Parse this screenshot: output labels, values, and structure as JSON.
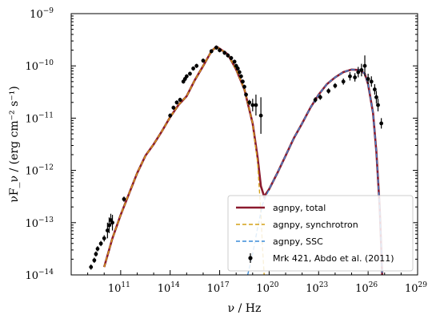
{
  "chart_data": {
    "type": "line",
    "title": "",
    "xlabel": "ν / Hz",
    "ylabel": "νF_ν / (erg cm⁻² s⁻¹)",
    "xscale": "log",
    "yscale": "log",
    "xlim": [
      100000000.0,
      1e+29
    ],
    "ylim": [
      1e-14,
      1e-09
    ],
    "grid": false,
    "legend_position": "bottom-right",
    "x_ticks": [
      {
        "value": 100000000000.0,
        "label": "10",
        "exp": "11"
      },
      {
        "value": 100000000000000.0,
        "label": "10",
        "exp": "14"
      },
      {
        "value": 1e+17,
        "label": "10",
        "exp": "17"
      },
      {
        "value": 1e+20,
        "label": "10",
        "exp": "20"
      },
      {
        "value": 1e+23,
        "label": "10",
        "exp": "23"
      },
      {
        "value": 1e+26,
        "label": "10",
        "exp": "26"
      },
      {
        "value": 1e+29,
        "label": "10",
        "exp": "29"
      }
    ],
    "y_ticks": [
      {
        "value": 1e-14,
        "label": "10",
        "exp": "−14"
      },
      {
        "value": 1e-13,
        "label": "10",
        "exp": "−13"
      },
      {
        "value": 1e-12,
        "label": "10",
        "exp": "−12"
      },
      {
        "value": 1e-11,
        "label": "10",
        "exp": "−11"
      },
      {
        "value": 1e-10,
        "label": "10",
        "exp": "−10"
      },
      {
        "value": 1e-09,
        "label": "10",
        "exp": "−9"
      }
    ],
    "series": [
      {
        "name": "agnpy, total",
        "color": "#8b1a2e",
        "style": "solid",
        "logx": [
          10.0,
          10.5,
          11.0,
          11.5,
          12.0,
          12.5,
          13.0,
          13.5,
          14.0,
          14.5,
          15.0,
          15.5,
          16.0,
          16.5,
          16.8,
          17.0,
          17.5,
          18.0,
          18.5,
          19.0,
          19.3,
          19.5,
          19.7,
          20.0,
          20.5,
          21.0,
          21.5,
          22.0,
          22.5,
          23.0,
          23.5,
          24.0,
          24.5,
          25.0,
          25.5,
          25.8,
          26.0,
          26.3,
          26.5,
          26.7,
          26.8,
          26.85
        ],
        "logy": [
          -13.85,
          -13.3,
          -12.85,
          -12.45,
          -12.05,
          -11.72,
          -11.5,
          -11.25,
          -10.98,
          -10.75,
          -10.58,
          -10.27,
          -10.0,
          -9.72,
          -9.63,
          -9.67,
          -9.78,
          -10.07,
          -10.45,
          -11.1,
          -11.75,
          -12.3,
          -12.5,
          -12.36,
          -12.05,
          -11.72,
          -11.38,
          -11.1,
          -10.8,
          -10.55,
          -10.35,
          -10.22,
          -10.12,
          -10.07,
          -10.08,
          -10.15,
          -10.35,
          -10.9,
          -11.65,
          -12.7,
          -13.5,
          -14.0
        ]
      },
      {
        "name": "agnpy, synchrotron",
        "color": "#d4a017",
        "style": "dashed",
        "logx": [
          10.0,
          10.5,
          11.0,
          11.5,
          12.0,
          12.5,
          13.0,
          13.5,
          14.0,
          14.5,
          15.0,
          15.5,
          16.0,
          16.5,
          16.8,
          17.0,
          17.5,
          18.0,
          18.5,
          19.0,
          19.3,
          19.5,
          19.6,
          19.7
        ],
        "logy": [
          -13.85,
          -13.3,
          -12.85,
          -12.45,
          -12.05,
          -11.72,
          -11.5,
          -11.25,
          -10.98,
          -10.75,
          -10.58,
          -10.27,
          -10.0,
          -9.72,
          -9.63,
          -9.67,
          -9.78,
          -10.07,
          -10.45,
          -11.1,
          -11.85,
          -12.8,
          -13.5,
          -14.0
        ]
      },
      {
        "name": "agnpy, SSC",
        "color": "#3a8bd8",
        "style": "dashed",
        "logx": [
          18.7,
          19.0,
          19.3,
          19.6,
          20.0,
          20.5,
          21.0,
          21.5,
          22.0,
          22.5,
          23.0,
          23.5,
          24.0,
          24.5,
          25.0,
          25.5,
          25.8,
          26.0,
          26.3,
          26.5,
          26.7,
          26.8,
          26.85
        ],
        "logy": [
          -14.0,
          -13.6,
          -13.1,
          -12.65,
          -12.36,
          -12.05,
          -11.72,
          -11.38,
          -11.1,
          -10.8,
          -10.55,
          -10.35,
          -10.22,
          -10.12,
          -10.07,
          -10.08,
          -10.15,
          -10.35,
          -10.9,
          -11.65,
          -12.7,
          -13.5,
          -14.0
        ]
      },
      {
        "name": "Mrk 421, Abdo et al. (2011)",
        "color": "#000000",
        "style": "points",
        "points": [
          [
            9.2,
            -13.85,
            0.05
          ],
          [
            9.4,
            -13.72,
            0.05
          ],
          [
            9.5,
            -13.6,
            0.05
          ],
          [
            9.6,
            -13.5,
            0.05
          ],
          [
            9.8,
            -13.4,
            0.05
          ],
          [
            10.0,
            -13.3,
            0.06
          ],
          [
            10.2,
            -13.15,
            0.15
          ],
          [
            10.3,
            -13.05,
            0.15
          ],
          [
            10.4,
            -12.95,
            0.12
          ],
          [
            10.5,
            -13.0,
            0.15
          ],
          [
            11.2,
            -12.55,
            0.05
          ],
          [
            14.0,
            -10.95,
            0.04
          ],
          [
            14.2,
            -10.8,
            0.04
          ],
          [
            14.4,
            -10.7,
            0.04
          ],
          [
            14.6,
            -10.65,
            0.04
          ],
          [
            14.8,
            -10.3,
            0.04
          ],
          [
            14.9,
            -10.25,
            0.04
          ],
          [
            15.0,
            -10.2,
            0.04
          ],
          [
            15.2,
            -10.15,
            0.04
          ],
          [
            15.4,
            -10.05,
            0.04
          ],
          [
            15.6,
            -10.0,
            0.04
          ],
          [
            16.0,
            -9.9,
            0.04
          ],
          [
            16.5,
            -9.72,
            0.04
          ],
          [
            16.8,
            -9.65,
            0.04
          ],
          [
            17.0,
            -9.7,
            0.04
          ],
          [
            17.3,
            -9.75,
            0.04
          ],
          [
            17.5,
            -9.8,
            0.04
          ],
          [
            17.7,
            -9.85,
            0.04
          ],
          [
            17.9,
            -9.92,
            0.04
          ],
          [
            18.0,
            -10.0,
            0.04
          ],
          [
            18.1,
            -10.05,
            0.04
          ],
          [
            18.2,
            -10.12,
            0.04
          ],
          [
            18.3,
            -10.2,
            0.04
          ],
          [
            18.4,
            -10.3,
            0.04
          ],
          [
            18.5,
            -10.4,
            0.04
          ],
          [
            18.6,
            -10.55,
            0.04
          ],
          [
            18.8,
            -10.7,
            0.05
          ],
          [
            19.0,
            -10.75,
            0.12
          ],
          [
            19.2,
            -10.75,
            0.2
          ],
          [
            19.5,
            -10.95,
            0.35
          ],
          [
            22.8,
            -10.65,
            0.05
          ],
          [
            23.1,
            -10.6,
            0.05
          ],
          [
            23.6,
            -10.48,
            0.05
          ],
          [
            24.0,
            -10.38,
            0.05
          ],
          [
            24.5,
            -10.3,
            0.06
          ],
          [
            24.9,
            -10.2,
            0.08
          ],
          [
            25.2,
            -10.22,
            0.08
          ],
          [
            25.4,
            -10.12,
            0.1
          ],
          [
            25.6,
            -10.08,
            0.12
          ],
          [
            25.8,
            -10.0,
            0.2
          ],
          [
            26.0,
            -10.25,
            0.1
          ],
          [
            26.2,
            -10.3,
            0.1
          ],
          [
            26.4,
            -10.45,
            0.1
          ],
          [
            26.5,
            -10.6,
            0.12
          ],
          [
            26.6,
            -10.75,
            0.12
          ],
          [
            26.8,
            -11.1,
            0.1
          ]
        ]
      }
    ]
  }
}
